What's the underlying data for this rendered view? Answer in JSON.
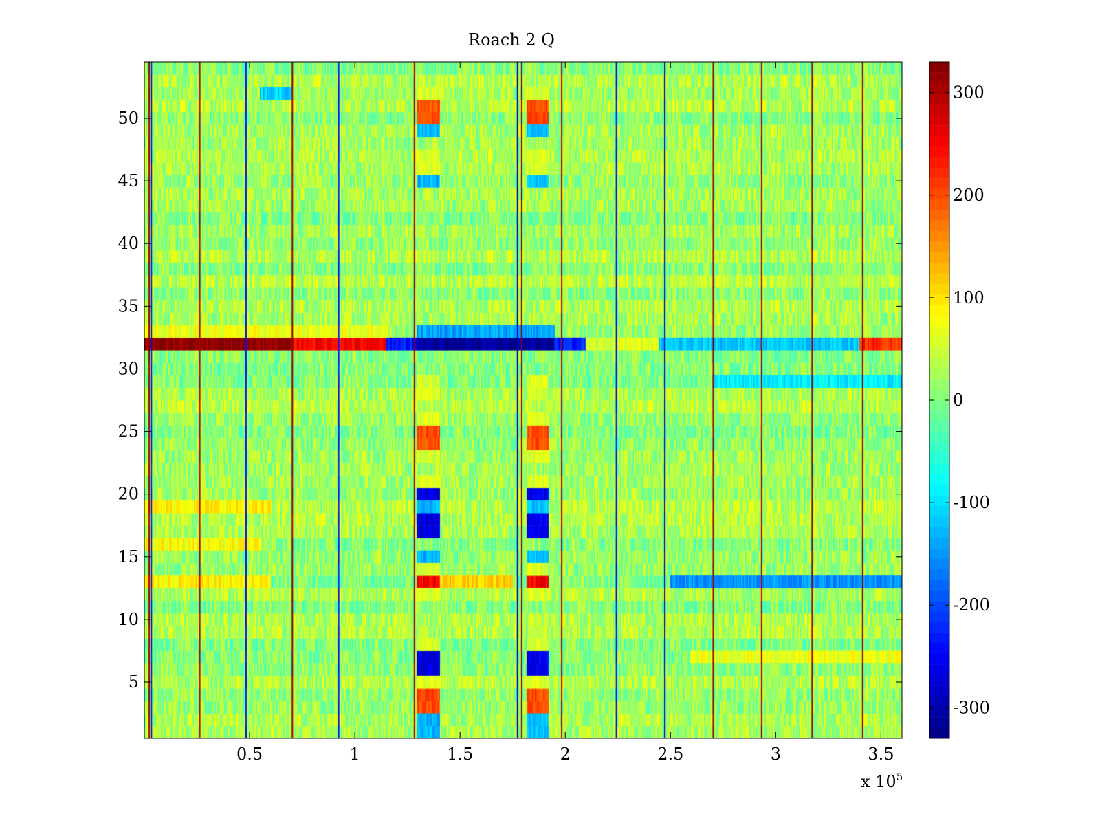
{
  "chart_data": {
    "type": "heatmap",
    "title": "Roach 2 Q",
    "xlabel": "",
    "ylabel": "",
    "x_exponent_label": "x 10",
    "x_exponent": "5",
    "xlim": [
      0,
      3.6
    ],
    "ylim": [
      0.5,
      54.5
    ],
    "x_ticks": [
      0.5,
      1,
      1.5,
      2,
      2.5,
      3,
      3.5
    ],
    "x_tick_labels": [
      "0.5",
      "1",
      "1.5",
      "2",
      "2.5",
      "3",
      "3.5"
    ],
    "y_ticks": [
      5,
      10,
      15,
      20,
      25,
      30,
      35,
      40,
      45,
      50
    ],
    "y_tick_labels": [
      "5",
      "10",
      "15",
      "20",
      "25",
      "30",
      "35",
      "40",
      "45",
      "50"
    ],
    "colorbar": {
      "range": [
        -330,
        330
      ],
      "colormap": "jet",
      "ticks": [
        -300,
        -200,
        -100,
        0,
        100,
        200,
        300
      ],
      "tick_labels": [
        "-300",
        "-200",
        "-100",
        "0",
        "100",
        "200",
        "300"
      ]
    },
    "rows": 54,
    "background_value": 20,
    "vertical_stripes": [
      {
        "x": 0.02,
        "value": 320
      },
      {
        "x": 0.03,
        "value": -250
      },
      {
        "x": 0.26,
        "value": 300
      },
      {
        "x": 0.48,
        "value": -250
      },
      {
        "x": 0.7,
        "value": 320
      },
      {
        "x": 0.92,
        "value": -250
      },
      {
        "x": 1.28,
        "value": 320
      },
      {
        "x": 1.77,
        "value": -300
      },
      {
        "x": 1.79,
        "value": 320
      },
      {
        "x": 1.98,
        "value": 300
      },
      {
        "x": 2.24,
        "value": -250
      },
      {
        "x": 2.47,
        "value": -300
      },
      {
        "x": 2.7,
        "value": 320
      },
      {
        "x": 2.93,
        "value": 300
      },
      {
        "x": 3.17,
        "value": 320
      },
      {
        "x": 3.41,
        "value": 320
      }
    ],
    "row_bands": [
      {
        "row": 32,
        "segments": [
          {
            "x0": 0.0,
            "x1": 0.7,
            "value": 320
          },
          {
            "x0": 0.7,
            "x1": 1.15,
            "value": 250
          },
          {
            "x0": 1.15,
            "x1": 1.3,
            "value": -230
          },
          {
            "x0": 1.3,
            "x1": 1.95,
            "value": -310
          },
          {
            "x0": 1.95,
            "x1": 2.1,
            "value": -220
          },
          {
            "x0": 2.1,
            "x1": 2.45,
            "value": 60
          },
          {
            "x0": 2.45,
            "x1": 3.4,
            "value": -120
          },
          {
            "x0": 3.4,
            "x1": 3.6,
            "value": 220
          }
        ]
      },
      {
        "row": 33,
        "segments": [
          {
            "x0": 0.0,
            "x1": 1.15,
            "value": 70
          },
          {
            "x0": 1.3,
            "x1": 1.95,
            "value": -140
          }
        ]
      },
      {
        "row": 13,
        "segments": [
          {
            "x0": 0.0,
            "x1": 0.6,
            "value": 90
          },
          {
            "x0": 1.3,
            "x1": 1.75,
            "value": 110
          },
          {
            "x0": 2.5,
            "x1": 3.6,
            "value": -150
          }
        ]
      },
      {
        "row": 29,
        "segments": [
          {
            "x0": 2.7,
            "x1": 3.6,
            "value": -90
          }
        ]
      },
      {
        "row": 52,
        "segments": [
          {
            "x0": 0.55,
            "x1": 0.7,
            "value": -110
          }
        ]
      },
      {
        "row": 19,
        "segments": [
          {
            "x0": 0.0,
            "x1": 0.6,
            "value": 90
          }
        ]
      },
      {
        "row": 16,
        "segments": [
          {
            "x0": 0.0,
            "x1": 0.55,
            "value": 80
          }
        ]
      },
      {
        "row": 7,
        "segments": [
          {
            "x0": 2.6,
            "x1": 3.6,
            "value": 70
          }
        ]
      }
    ],
    "blocks": [
      {
        "x0": 1.3,
        "x1": 1.4,
        "rows": [
          3,
          4,
          24,
          25,
          50,
          51
        ],
        "value": 200
      },
      {
        "x0": 1.82,
        "x1": 1.92,
        "rows": [
          3,
          4,
          24,
          25,
          50,
          51
        ],
        "value": 200
      },
      {
        "x0": 1.3,
        "x1": 1.4,
        "rows": [
          13
        ],
        "value": 250
      },
      {
        "x0": 1.82,
        "x1": 1.92,
        "rows": [
          13
        ],
        "value": 250
      },
      {
        "x0": 1.3,
        "x1": 1.4,
        "rows": [
          6,
          7,
          17,
          18,
          20
        ],
        "value": -270
      },
      {
        "x0": 1.82,
        "x1": 1.92,
        "rows": [
          6,
          7,
          17,
          18,
          20
        ],
        "value": -260
      },
      {
        "x0": 1.3,
        "x1": 1.4,
        "rows": [
          1,
          2,
          15,
          19,
          45,
          49
        ],
        "value": -130
      },
      {
        "x0": 1.82,
        "x1": 1.92,
        "rows": [
          1,
          2,
          15,
          19,
          45,
          49
        ],
        "value": -120
      },
      {
        "x0": 1.3,
        "x1": 1.4,
        "rows": [
          5,
          8,
          12,
          14,
          21,
          23,
          26,
          28,
          29,
          46,
          47,
          52
        ],
        "value": 60
      },
      {
        "x0": 1.82,
        "x1": 1.92,
        "rows": [
          5,
          8,
          12,
          14,
          21,
          23,
          26,
          28,
          29,
          46,
          47,
          52
        ],
        "value": 60
      }
    ]
  }
}
